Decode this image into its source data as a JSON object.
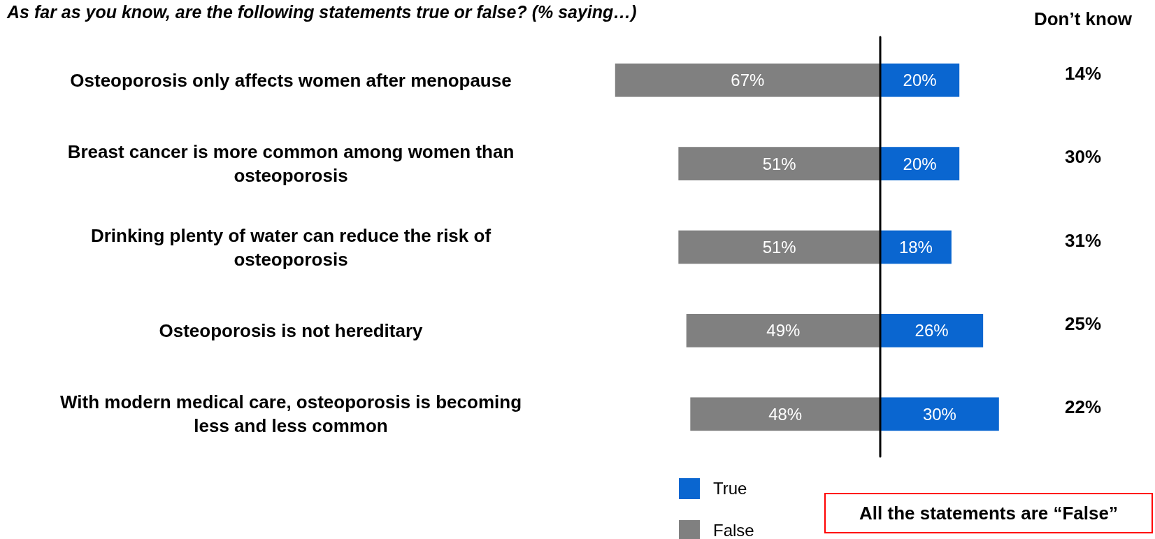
{
  "chart_data": [
    {
      "type": "bar",
      "orientation": "horizontal",
      "title": "As far as you know, are the following statements true or false? (% saying…)",
      "categories": [
        "Osteoporosis only affects women after menopause",
        "Breast cancer is more common among women than osteoporosis",
        "Drinking plenty of water can reduce the risk of osteoporosis",
        "Osteoporosis is not hereditary",
        "With modern medical care, osteoporosis is becoming less and less common"
      ],
      "series": [
        {
          "name": "False",
          "color": "#808080",
          "values": [
            67,
            51,
            51,
            49,
            48
          ],
          "value_labels": [
            "67%",
            "51%",
            "51%",
            "49%",
            "48%"
          ]
        }
      ],
      "xlim": [
        67,
        0
      ],
      "tick_labels": "y",
      "legend": "bottom"
    },
    {
      "type": "bar",
      "orientation": "horizontal",
      "categories": [
        null,
        null,
        null,
        null,
        null
      ],
      "series": [
        {
          "name": "True",
          "color": "#0a66d0",
          "values": [
            20,
            20,
            18,
            26,
            30
          ],
          "value_labels": [
            "20%",
            "20%",
            "18%",
            "26%",
            "30%"
          ]
        }
      ],
      "xlim": [
        0,
        30
      ],
      "tick_labels": false,
      "legend": "bottom",
      "annotations": [
        "Don’t know",
        "14%",
        "30%",
        "31%",
        "25%",
        "22%",
        "All the statements are “False”"
      ]
    }
  ]
}
